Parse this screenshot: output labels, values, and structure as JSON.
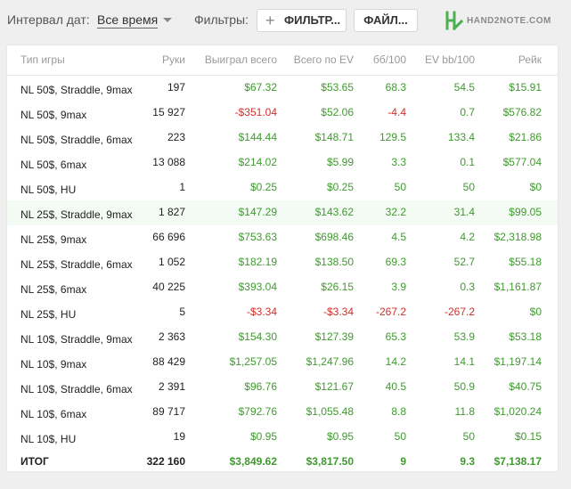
{
  "toolbar": {
    "date_interval_label": "Интервал дат:",
    "date_interval_value": "Все время",
    "filters_label": "Фильтры:",
    "filter_button": "ФИЛЬТР...",
    "file_button": "ФАЙЛ...",
    "logo_text": "HAND2NOTE.COM"
  },
  "colors": {
    "positive": "#3f9a2e",
    "negative": "#d0302a",
    "highlight_row": "#f4fbf4"
  },
  "table": {
    "columns": [
      "Тип игры",
      "Руки",
      "Выиграл всего",
      "Всего по EV",
      "бб/100",
      "EV bb/100",
      "Рейк"
    ],
    "rows": [
      [
        "NL 50$, Straddle, 9max",
        "197",
        "$67.32",
        "$53.65",
        "68.3",
        "54.5",
        "$15.91"
      ],
      [
        "NL 50$, 9max",
        "15 927",
        "-$351.04",
        "$52.06",
        "-4.4",
        "0.7",
        "$576.82"
      ],
      [
        "NL 50$, Straddle, 6max",
        "223",
        "$144.44",
        "$148.71",
        "129.5",
        "133.4",
        "$21.86"
      ],
      [
        "NL 50$, 6max",
        "13 088",
        "$214.02",
        "$5.99",
        "3.3",
        "0.1",
        "$577.04"
      ],
      [
        "NL 50$, HU",
        "1",
        "$0.25",
        "$0.25",
        "50",
        "50",
        "$0"
      ],
      [
        "NL 25$, Straddle, 9max",
        "1 827",
        "$147.29",
        "$143.62",
        "32.2",
        "31.4",
        "$99.05"
      ],
      [
        "NL 25$, 9max",
        "66 696",
        "$753.63",
        "$698.46",
        "4.5",
        "4.2",
        "$2,318.98"
      ],
      [
        "NL 25$, Straddle, 6max",
        "1 052",
        "$182.19",
        "$138.50",
        "69.3",
        "52.7",
        "$55.18"
      ],
      [
        "NL 25$, 6max",
        "40 225",
        "$393.04",
        "$26.15",
        "3.9",
        "0.3",
        "$1,161.87"
      ],
      [
        "NL 25$, HU",
        "5",
        "-$3.34",
        "-$3.34",
        "-267.2",
        "-267.2",
        "$0"
      ],
      [
        "NL 10$, Straddle, 9max",
        "2 363",
        "$154.30",
        "$127.39",
        "65.3",
        "53.9",
        "$53.18"
      ],
      [
        "NL 10$, 9max",
        "88 429",
        "$1,257.05",
        "$1,247.96",
        "14.2",
        "14.1",
        "$1,197.14"
      ],
      [
        "NL 10$, Straddle, 6max",
        "2 391",
        "$96.76",
        "$121.67",
        "40.5",
        "50.9",
        "$40.75"
      ],
      [
        "NL 10$, 6max",
        "89 717",
        "$792.76",
        "$1,055.48",
        "8.8",
        "11.8",
        "$1,020.24"
      ],
      [
        "NL 10$, HU",
        "19",
        "$0.95",
        "$0.95",
        "50",
        "50",
        "$0.15"
      ]
    ],
    "highlighted_row": 5,
    "total": [
      "ИТОГ",
      "322 160",
      "$3,849.62",
      "$3,817.50",
      "9",
      "9.3",
      "$7,138.17"
    ]
  }
}
